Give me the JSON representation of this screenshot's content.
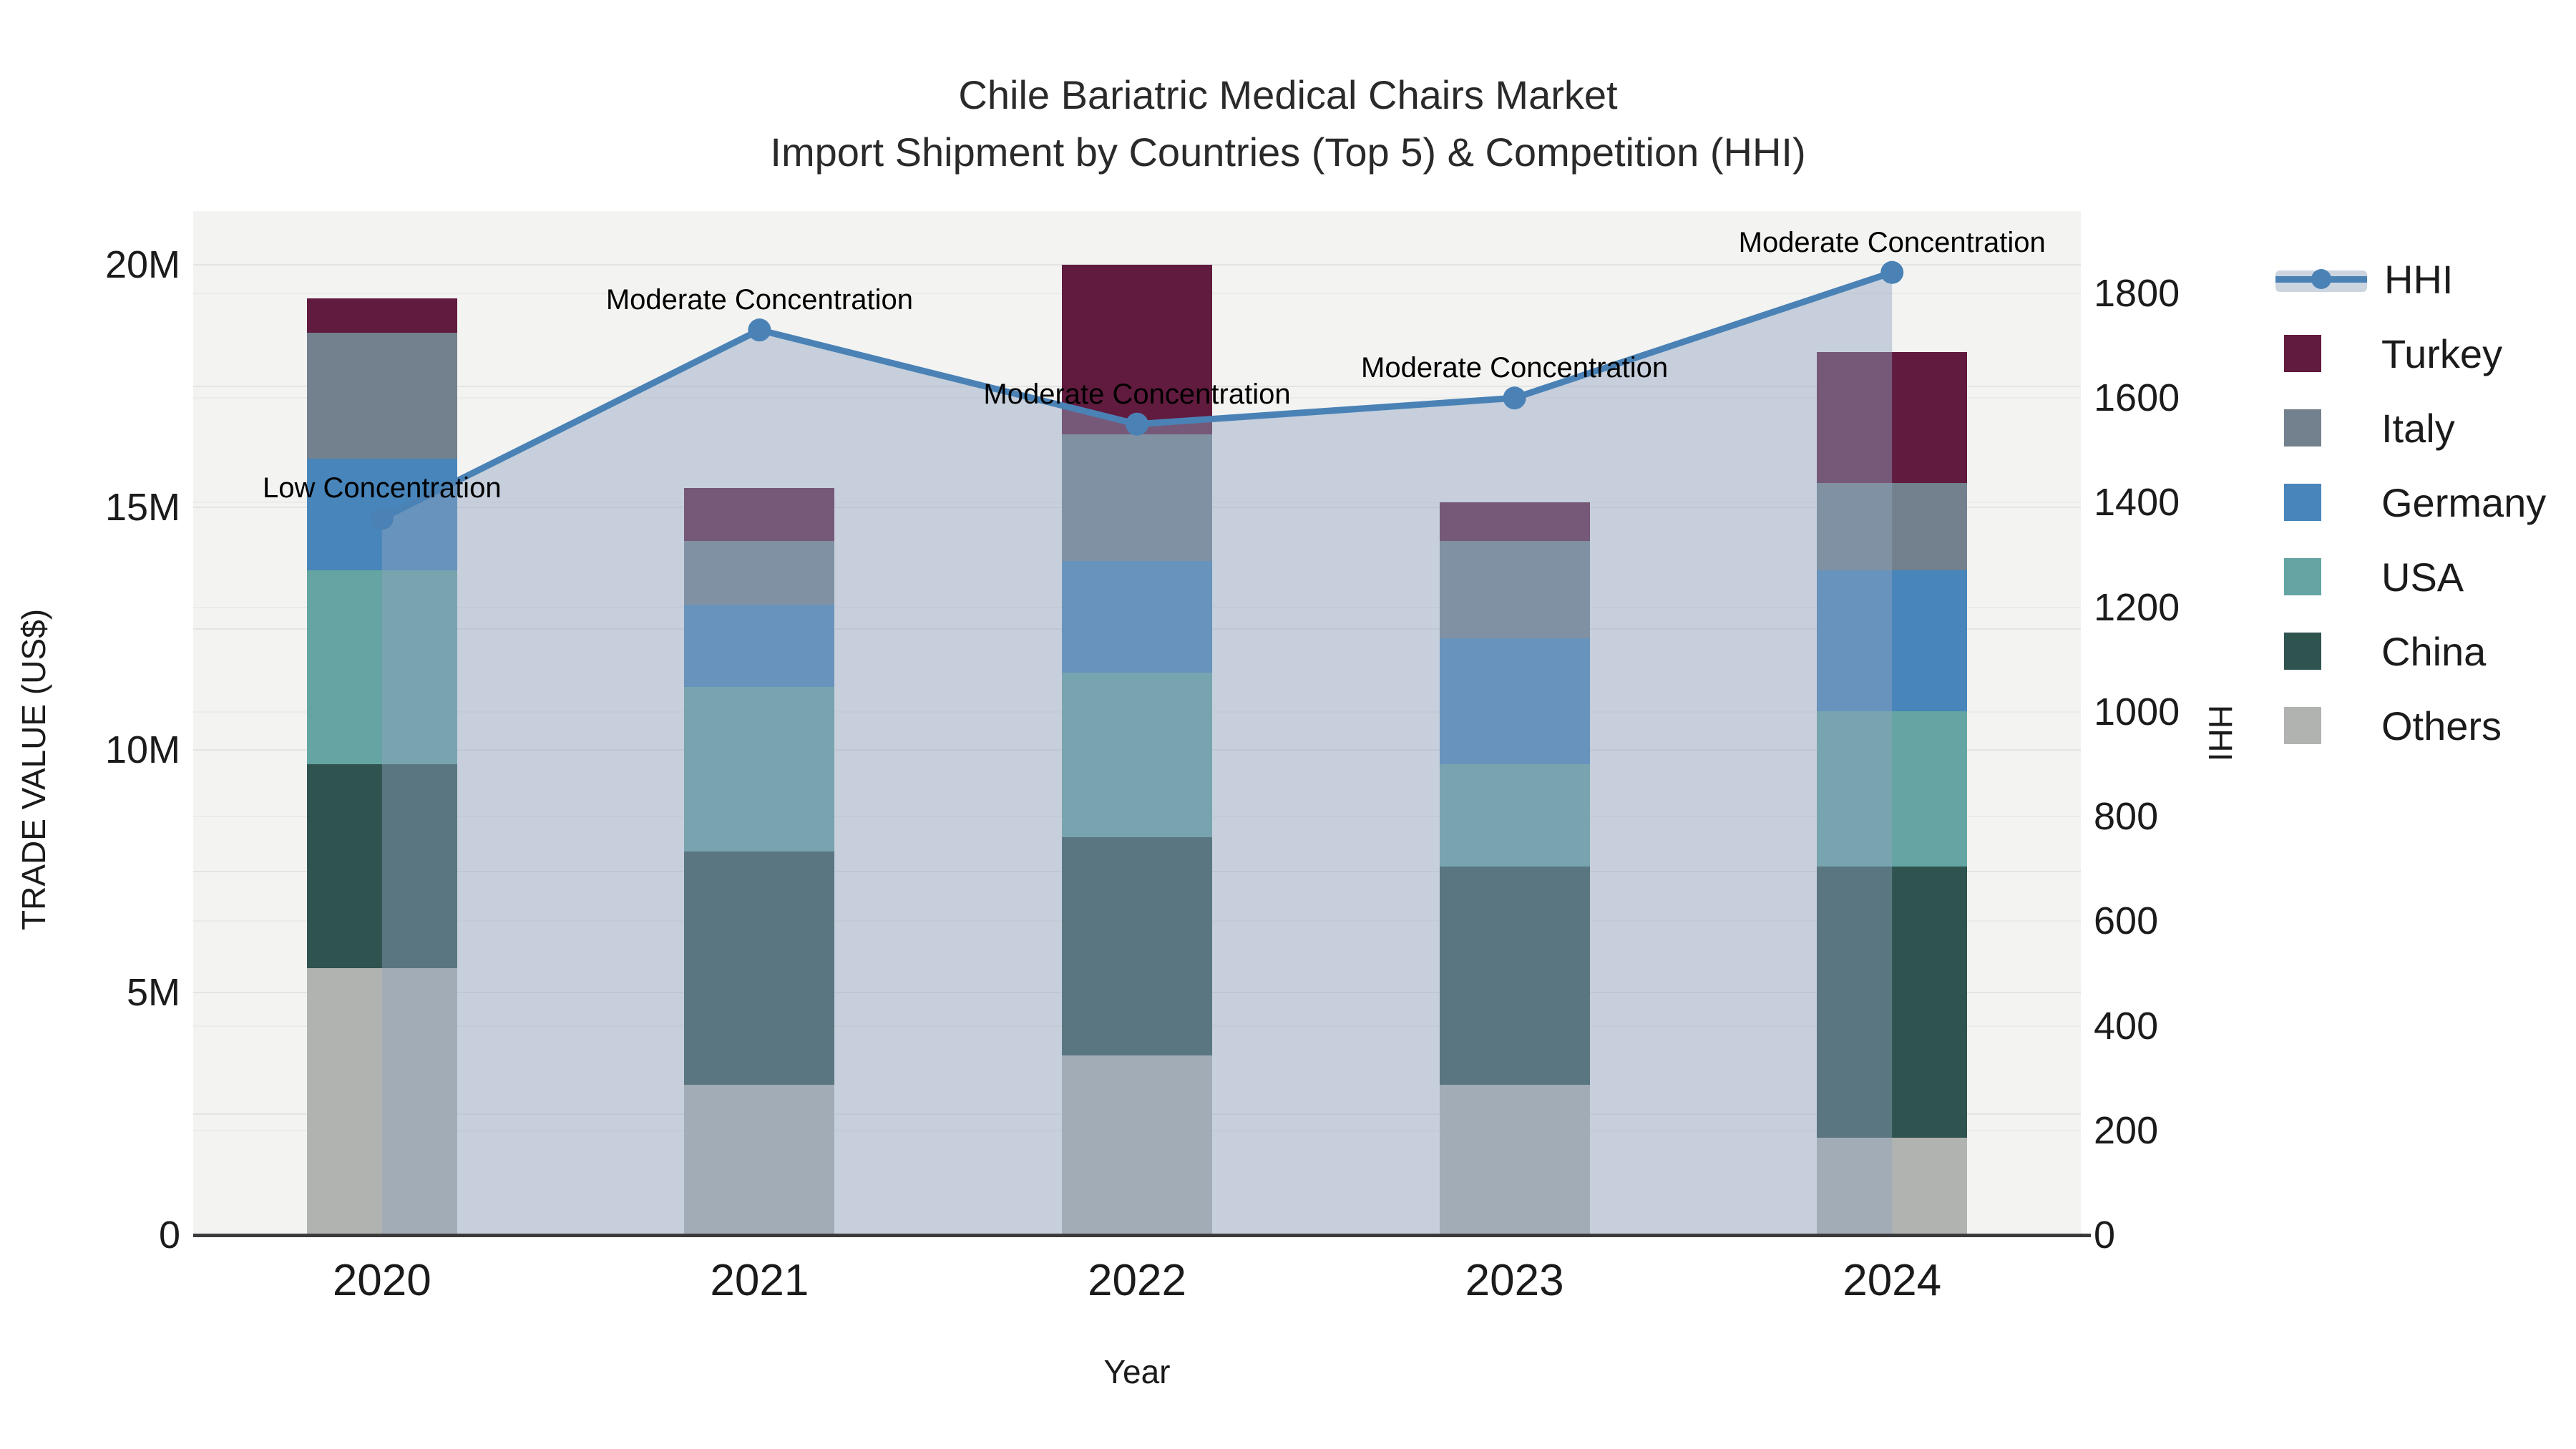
{
  "title": {
    "line1": "Chile Bariatric Medical Chairs Market",
    "line2": "Import Shipment by Countries (Top 5) & Competition (HHI)"
  },
  "axes": {
    "x": {
      "title": "Year",
      "ticks": [
        "2020",
        "2021",
        "2022",
        "2023",
        "2024"
      ]
    },
    "y_left": {
      "title": "TRADE VALUE (US$)",
      "ticks": [
        "0",
        "5M",
        "10M",
        "15M",
        "20M"
      ],
      "tick_values_millions": [
        0,
        5,
        10,
        15,
        20
      ]
    },
    "y_right": {
      "title": "HHI",
      "ticks": [
        "0",
        "200",
        "400",
        "600",
        "800",
        "1000",
        "1200",
        "1400",
        "1600",
        "1800"
      ],
      "tick_values": [
        0,
        200,
        400,
        600,
        800,
        1000,
        1200,
        1400,
        1600,
        1800
      ]
    }
  },
  "legend": {
    "items": [
      {
        "label": "HHI",
        "type": "line",
        "color": "#4a82b6"
      },
      {
        "label": "Turkey",
        "type": "swatch",
        "color": "#611b3e"
      },
      {
        "label": "Italy",
        "type": "swatch",
        "color": "#73818e"
      },
      {
        "label": "Germany",
        "type": "swatch",
        "color": "#4785ba"
      },
      {
        "label": "USA",
        "type": "swatch",
        "color": "#64a5a3"
      },
      {
        "label": "China",
        "type": "swatch",
        "color": "#2f534f"
      },
      {
        "label": "Others",
        "type": "swatch",
        "color": "#b1b3b0"
      }
    ]
  },
  "chart_data": {
    "type": "bar",
    "subtype": "stacked-bars-with-line-overlay",
    "categories": [
      "2020",
      "2021",
      "2022",
      "2023",
      "2024"
    ],
    "bar_value_unit": "million US$",
    "series": [
      {
        "name": "Others",
        "color": "#b1b3b0",
        "values": [
          5.5,
          3.1,
          3.7,
          3.1,
          2.0
        ]
      },
      {
        "name": "China",
        "color": "#2f534f",
        "values": [
          4.2,
          4.8,
          4.5,
          4.5,
          5.6
        ]
      },
      {
        "name": "USA",
        "color": "#64a5a3",
        "values": [
          4.0,
          3.4,
          3.4,
          2.1,
          3.2
        ]
      },
      {
        "name": "Germany",
        "color": "#4785ba",
        "values": [
          2.3,
          1.7,
          2.3,
          2.6,
          2.9
        ]
      },
      {
        "name": "Italy",
        "color": "#73818e",
        "values": [
          2.6,
          1.3,
          2.6,
          2.0,
          1.8
        ]
      },
      {
        "name": "Turkey",
        "color": "#611b3e",
        "values": [
          0.7,
          1.1,
          3.5,
          0.8,
          2.7
        ]
      }
    ],
    "line_series": {
      "name": "HHI",
      "color": "#4a82b6",
      "values": [
        1370,
        1730,
        1550,
        1600,
        1840
      ],
      "area_fill": "rgba(145,164,190,0.45)"
    },
    "annotations": [
      "Low Concentration",
      "Moderate Concentration",
      "Moderate Concentration",
      "Moderate Concentration",
      "Moderate Concentration"
    ],
    "title": "Chile Bariatric Medical Chairs Market Import Shipment by Countries (Top 5) & Competition (HHI)",
    "xlabel": "Year",
    "ylabel_left": "TRADE VALUE (US$)",
    "ylabel_right": "HHI",
    "y_left_range_millions": [
      0,
      21.1
    ],
    "y_right_range": [
      0,
      1800
    ],
    "grid": true,
    "legend_position": "right"
  },
  "colors": {
    "page_bg": "#ffffff",
    "plot_bg": "#f3f3f2",
    "grid_left_axis": "#e4e4e3",
    "grid_right_axis": "#ebebea",
    "axis_line": "#3b3b3b",
    "text": "#1b1b1b",
    "hhi_line": "#4a82b6",
    "area_overlay": "rgba(145,164,190,0.45)"
  }
}
